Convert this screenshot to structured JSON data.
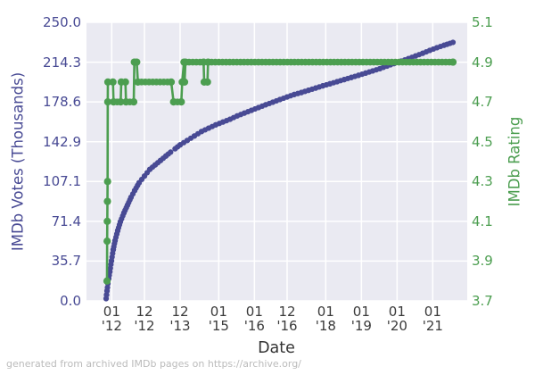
{
  "footer": {
    "text": "generated from archived IMDb pages on https://archive.org/"
  },
  "chart_data": {
    "type": "scatter",
    "title": "",
    "xlabel": "Date",
    "ylabel_left": "IMDb Votes (Thousands)",
    "ylabel_right": "IMDb Rating",
    "legend": "none",
    "grid": "on",
    "colors": {
      "votes": "#484a94",
      "rating": "#4c9e50",
      "plot_background": "#eaeaf2",
      "gridline": "#ffffff",
      "x_tick_text": "#3a3a3a",
      "footer_text": "#bbbbbb"
    },
    "x_axis": {
      "x_unit": "months since 2011-12",
      "domain_months": [
        -7.5,
        120.6
      ],
      "tick_months": [
        1,
        12,
        24,
        37,
        49,
        60,
        73,
        85,
        97,
        109
      ],
      "tick_labels": [
        [
          "01",
          "'12"
        ],
        [
          "12",
          "'12"
        ],
        [
          "12",
          "'13"
        ],
        [
          "01",
          "'15"
        ],
        [
          "01",
          "'16"
        ],
        [
          "12",
          "'16"
        ],
        [
          "01",
          "'18"
        ],
        [
          "01",
          "'19"
        ],
        [
          "01",
          "'20"
        ],
        [
          "01",
          "'21"
        ]
      ]
    },
    "left_axis": {
      "range": [
        0,
        250
      ],
      "tick_values": [
        0,
        35.71,
        71.43,
        107.14,
        142.86,
        178.57,
        214.29,
        250
      ],
      "tick_labels": [
        "0.0",
        "35.7",
        "71.4",
        "107.1",
        "142.9",
        "178.6",
        "214.3",
        "250.0"
      ]
    },
    "right_axis": {
      "range": [
        3.7,
        5.1
      ],
      "tick_values": [
        3.7,
        3.9,
        4.1,
        4.3,
        4.5,
        4.7,
        4.9,
        5.1
      ],
      "tick_labels": [
        "3.7",
        "3.9",
        "4.1",
        "4.3",
        "4.5",
        "4.7",
        "4.9",
        "5.1"
      ]
    },
    "votes_series": {
      "name": "IMDb Votes (Thousands)",
      "segments": [
        [
          [
            -0.9,
            2
          ],
          [
            -0.75,
            5.5
          ],
          [
            -0.6,
            9
          ],
          [
            -0.45,
            12
          ]
        ],
        [
          [
            -0.3,
            15.5
          ],
          [
            0,
            20
          ],
          [
            0.35,
            26
          ],
          [
            0.9,
            36
          ],
          [
            1.5,
            46
          ],
          [
            2.1,
            54
          ],
          [
            3,
            63
          ],
          [
            3.9,
            71
          ],
          [
            5.1,
            79
          ],
          [
            6.3,
            86
          ],
          [
            7.5,
            93
          ],
          [
            8.7,
            99
          ],
          [
            10.2,
            106
          ],
          [
            12,
            112
          ],
          [
            13.8,
            118
          ],
          [
            15.6,
            122
          ],
          [
            17.4,
            126
          ],
          [
            19.2,
            130
          ],
          [
            20.8,
            133.5
          ]
        ],
        [
          [
            22.3,
            136.5
          ],
          [
            24,
            140
          ],
          [
            26.4,
            144
          ],
          [
            28.8,
            148
          ],
          [
            31.2,
            152
          ],
          [
            33.6,
            155
          ],
          [
            36,
            158
          ],
          [
            38.4,
            160.5
          ],
          [
            40.8,
            163
          ],
          [
            43.2,
            166
          ],
          [
            45.6,
            168.5
          ],
          [
            48,
            171
          ],
          [
            50.4,
            173.5
          ],
          [
            52.8,
            176
          ],
          [
            55.2,
            178.3
          ],
          [
            57.6,
            180.7
          ],
          [
            60,
            183
          ],
          [
            62.4,
            185.2
          ],
          [
            64.8,
            187
          ],
          [
            67.2,
            189
          ],
          [
            69.6,
            191
          ],
          [
            72,
            193
          ],
          [
            74.4,
            194.8
          ],
          [
            76.8,
            196.7
          ],
          [
            79.2,
            198.6
          ],
          [
            81.6,
            200.5
          ],
          [
            84,
            202.4
          ],
          [
            86.4,
            204.4
          ],
          [
            88.8,
            206.4
          ],
          [
            91.2,
            208.4
          ],
          [
            93.6,
            210.7
          ],
          [
            96,
            213
          ],
          [
            98.4,
            215.2
          ],
          [
            100.8,
            217.4
          ],
          [
            103.2,
            219.8
          ],
          [
            105.6,
            222.2
          ],
          [
            108,
            224.8
          ],
          [
            110.4,
            227.2
          ],
          [
            112.8,
            229.4
          ],
          [
            115.8,
            232
          ]
        ]
      ]
    },
    "rating_series": {
      "name": "IMDb Rating",
      "points": [
        [
          -0.6,
          3.8
        ],
        [
          -0.55,
          4.0
        ],
        [
          -0.5,
          4.1
        ],
        [
          -0.45,
          4.2
        ],
        [
          -0.4,
          4.3
        ],
        [
          -0.35,
          4.7
        ],
        [
          -0.3,
          4.8
        ],
        [
          1.4,
          4.8
        ],
        [
          1.6,
          4.7
        ],
        [
          4.0,
          4.7
        ],
        [
          4.2,
          4.8
        ],
        [
          5.6,
          4.8
        ],
        [
          5.8,
          4.7
        ],
        [
          8.4,
          4.7
        ],
        [
          8.6,
          4.9
        ],
        [
          9.4,
          4.9
        ],
        [
          9.8,
          4.8
        ],
        [
          21.0,
          4.8
        ],
        [
          21.8,
          4.7
        ],
        [
          24.4,
          4.7
        ],
        [
          24.7,
          4.8
        ],
        [
          25.3,
          4.9
        ],
        [
          25.5,
          4.8
        ],
        [
          25.8,
          4.9
        ],
        [
          31.9,
          4.9
        ],
        [
          32.1,
          4.8
        ],
        [
          33.2,
          4.8
        ],
        [
          33.4,
          4.9
        ],
        [
          115.8,
          4.9
        ]
      ]
    }
  }
}
